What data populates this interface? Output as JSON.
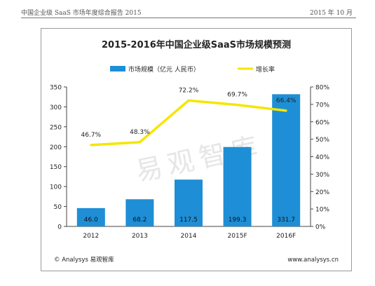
{
  "report": {
    "header_left": "中国企业级 SaaS 市场年度综合报告 2015",
    "header_right": "2015 年 10 月"
  },
  "footer": {
    "left": "© Analysys 易观智库",
    "right": "www.analysys.cn"
  },
  "watermark": "易观智库",
  "chart_data": {
    "type": "bar",
    "title": "2015-2016年中国企业级SaaS市场规模预测",
    "categories": [
      "2012",
      "2013",
      "2014",
      "2015F",
      "2016F"
    ],
    "series": [
      {
        "name": "市场规模（亿元 人民币）",
        "type": "bar",
        "axis": "left",
        "color": "#1E8FD6",
        "values": [
          46.0,
          68.2,
          117.5,
          199.3,
          331.7
        ],
        "labels": [
          "46.0",
          "68.2",
          "117.5",
          "199.3",
          "331.7"
        ]
      },
      {
        "name": "增长率",
        "type": "line",
        "axis": "right",
        "color": "#F5E600",
        "values": [
          46.7,
          48.3,
          72.2,
          69.7,
          66.4
        ],
        "labels": [
          "46.7%",
          "48.3%",
          "72.2%",
          "69.7%",
          "66.4%"
        ]
      }
    ],
    "y_left": {
      "min": 0,
      "max": 350,
      "ticks": [
        "0",
        "50",
        "100",
        "150",
        "200",
        "250",
        "300",
        "350"
      ]
    },
    "y_right": {
      "min": 0,
      "max": 80,
      "ticks": [
        "0%",
        "10%",
        "20%",
        "30%",
        "40%",
        "50%",
        "60%",
        "70%",
        "80%"
      ]
    },
    "grid": false,
    "legend_position": "top"
  }
}
